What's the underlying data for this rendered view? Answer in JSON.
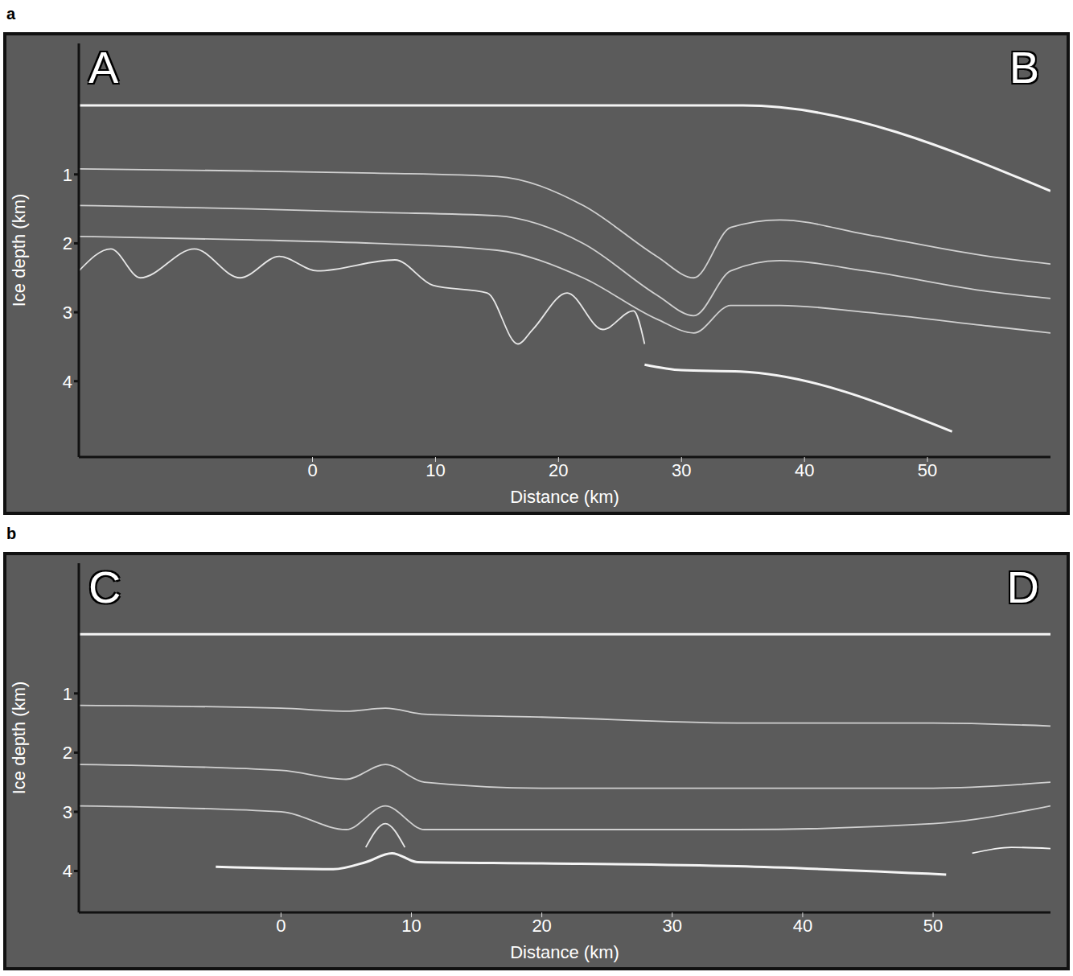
{
  "chart_data": [
    {
      "type": "line",
      "panel_label": "a",
      "annotations": [
        "A",
        "B"
      ],
      "x_label": "Distance (km)",
      "y_label": "Ice depth (km)",
      "xlim": [
        -19,
        60
      ],
      "xticks": [
        0,
        10,
        20,
        30,
        40,
        50
      ],
      "ylim": [
        -0.9,
        5.1
      ],
      "yticks": [
        1,
        2,
        3,
        4
      ],
      "grid": false,
      "series": [
        {
          "color": "#f4f4f4",
          "x": [
            -19,
            35,
            60
          ],
          "values": [
            0,
            0,
            1.24
          ]
        },
        {
          "color": "#f4f4f4",
          "x": [
            27,
            30,
            34.8,
            52
          ],
          "values": [
            3.76,
            3.84,
            3.86,
            4.73
          ]
        },
        {
          "color": "#e6e6e6",
          "x": [
            -19,
            -16.4,
            -14,
            -9.6,
            -5.9,
            -2.7,
            0.4,
            6.7,
            9.8,
            14.2,
            16.7,
            17.9,
            20.7,
            23.6,
            26.1,
            27
          ],
          "values": [
            2.4,
            2.08,
            2.5,
            2.08,
            2.5,
            2.19,
            2.4,
            2.24,
            2.61,
            2.72,
            3.46,
            3.25,
            2.72,
            3.25,
            2.98,
            3.46
          ]
        },
        {
          "color": "#d0d0d0",
          "x": [
            -19,
            -5,
            5,
            15,
            22,
            28,
            31,
            34,
            38,
            45,
            55,
            60
          ],
          "values": [
            0.92,
            0.95,
            0.98,
            1.03,
            1.45,
            2.19,
            2.5,
            1.77,
            1.66,
            1.87,
            2.19,
            2.3
          ]
        },
        {
          "color": "#d0d0d0",
          "x": [
            -19,
            -5,
            5,
            15,
            22,
            28,
            31,
            34,
            38,
            45,
            55,
            60
          ],
          "values": [
            1.45,
            1.5,
            1.55,
            1.6,
            2.0,
            2.75,
            3.05,
            2.4,
            2.25,
            2.4,
            2.7,
            2.8
          ]
        },
        {
          "color": "#d0d0d0",
          "x": [
            -19,
            -5,
            5,
            15,
            22,
            28,
            31,
            34,
            38,
            45,
            55,
            60
          ],
          "values": [
            1.9,
            1.95,
            2.0,
            2.1,
            2.5,
            3.1,
            3.3,
            2.9,
            2.9,
            3.0,
            3.2,
            3.3
          ]
        }
      ]
    },
    {
      "type": "line",
      "panel_label": "b",
      "annotations": [
        "C",
        "D"
      ],
      "x_label": "Distance (km)",
      "y_label": "Ice depth (km)",
      "xlim": [
        -15.5,
        59
      ],
      "xticks": [
        0,
        10,
        20,
        30,
        40,
        50
      ],
      "ylim": [
        -1.2,
        4.7
      ],
      "yticks": [
        1,
        2,
        3,
        4
      ],
      "grid": false,
      "series": [
        {
          "color": "#f4f4f4",
          "x": [
            -15.5,
            59
          ],
          "values": [
            0,
            0
          ]
        },
        {
          "color": "#f4f4f4",
          "x": [
            -5,
            4,
            6.5,
            8.5,
            10.5,
            20,
            35,
            51
          ],
          "values": [
            3.93,
            3.97,
            3.85,
            3.7,
            3.85,
            3.87,
            3.92,
            4.06
          ]
        },
        {
          "color": "#e6e6e6",
          "x": [
            6.5,
            8,
            9.5
          ],
          "values": [
            3.6,
            3.2,
            3.6
          ]
        },
        {
          "color": "#f4f4f4",
          "x": [
            53,
            56,
            59
          ],
          "values": [
            3.7,
            3.6,
            3.62
          ]
        },
        {
          "color": "#d0d0d0",
          "x": [
            -15.5,
            0,
            5,
            8,
            11,
            20,
            35,
            50,
            59
          ],
          "values": [
            1.2,
            1.25,
            1.3,
            1.25,
            1.35,
            1.4,
            1.5,
            1.5,
            1.55
          ]
        },
        {
          "color": "#d0d0d0",
          "x": [
            -15.5,
            0,
            5,
            8,
            11,
            20,
            35,
            50,
            59
          ],
          "values": [
            2.2,
            2.3,
            2.45,
            2.2,
            2.5,
            2.6,
            2.6,
            2.6,
            2.5
          ]
        },
        {
          "color": "#d0d0d0",
          "x": [
            -15.5,
            0,
            5,
            8,
            11,
            20,
            35,
            50,
            59
          ],
          "values": [
            2.9,
            3.0,
            3.3,
            2.9,
            3.3,
            3.3,
            3.3,
            3.2,
            2.9
          ]
        }
      ]
    }
  ]
}
